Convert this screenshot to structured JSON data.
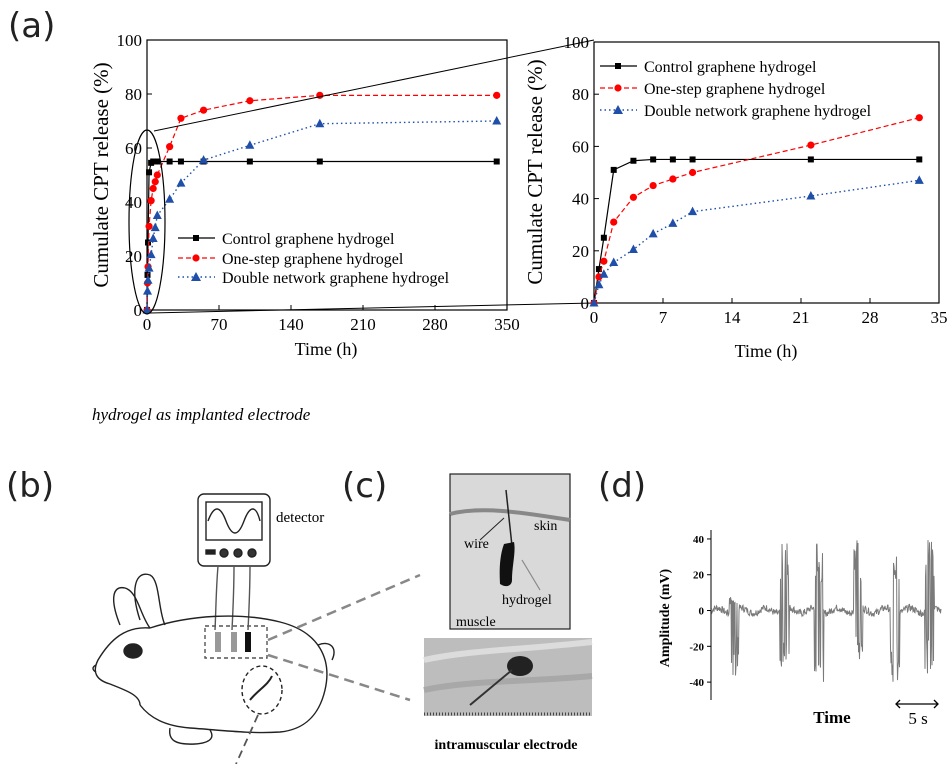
{
  "panel_labels": {
    "a": "(a)",
    "b": "(b)",
    "c": "(c)",
    "d": "(d)"
  },
  "caption_implanted": "hydrogel as implanted  electrode",
  "caption_intramuscular": "intramuscular electrode",
  "illustration_b": {
    "detector_label": "detector"
  },
  "illustration_c": {
    "wire_label": "wire",
    "skin_label": "skin",
    "hydrogel_label": "hydrogel",
    "muscle_label": "muscle"
  },
  "colors": {
    "control": "#000000",
    "one_step": "#ff0000",
    "double_network": "#1f4fa8",
    "emg": "#7a7a7a"
  },
  "chart_data": [
    {
      "type": "line",
      "ylabel": "Cumulate CPT release (%)",
      "xlabel": "Time (h)",
      "xlim": [
        0,
        350
      ],
      "ylim": [
        0,
        100
      ],
      "xticks": [
        0,
        70,
        140,
        210,
        280,
        350
      ],
      "yticks": [
        0,
        20,
        40,
        60,
        80,
        100
      ],
      "legend_position": "center",
      "series": [
        {
          "name": "Control graphene hydrogel",
          "color": "#000000",
          "dash": "solid",
          "marker": "square",
          "points": [
            [
              0,
              0
            ],
            [
              0.5,
              13
            ],
            [
              1,
              25
            ],
            [
              2,
              51
            ],
            [
              4,
              54.5
            ],
            [
              6,
              55
            ],
            [
              8,
              55
            ],
            [
              10,
              55
            ],
            [
              22,
              55
            ],
            [
              33,
              55
            ],
            [
              55,
              55
            ],
            [
              100,
              55
            ],
            [
              168,
              55
            ],
            [
              340,
              55
            ]
          ]
        },
        {
          "name": "One-step graphene hydrogel",
          "color": "#ff0000",
          "dash": "dashed",
          "marker": "circle",
          "points": [
            [
              0,
              0
            ],
            [
              0.5,
              10
            ],
            [
              1,
              16
            ],
            [
              2,
              31
            ],
            [
              4,
              40.5
            ],
            [
              6,
              45
            ],
            [
              8,
              47.5
            ],
            [
              10,
              50
            ],
            [
              22,
              60.5
            ],
            [
              33,
              71
            ],
            [
              55,
              74
            ],
            [
              100,
              77.5
            ],
            [
              168,
              79.5
            ],
            [
              340,
              79.5
            ]
          ]
        },
        {
          "name": "Double network graphene hydrogel",
          "color": "#1f4fa8",
          "dash": "dotted",
          "marker": "triangle",
          "points": [
            [
              0,
              0
            ],
            [
              0.5,
              7
            ],
            [
              1,
              11
            ],
            [
              2,
              15.5
            ],
            [
              4,
              20.5
            ],
            [
              6,
              26.5
            ],
            [
              8,
              30.5
            ],
            [
              10,
              35
            ],
            [
              22,
              41
            ],
            [
              33,
              47
            ],
            [
              55,
              55.5
            ],
            [
              100,
              61
            ],
            [
              168,
              69
            ],
            [
              340,
              70
            ]
          ]
        }
      ]
    },
    {
      "type": "line",
      "ylabel": "Cumulate CPT release (%)",
      "xlabel": "Time (h)",
      "xlim": [
        0,
        35
      ],
      "ylim": [
        0,
        100
      ],
      "xticks": [
        0,
        7,
        14,
        21,
        28,
        35
      ],
      "yticks": [
        0,
        20,
        40,
        60,
        80,
        100
      ],
      "legend_position": "top-left",
      "series": [
        {
          "name": "Control graphene hydrogel",
          "color": "#000000",
          "dash": "solid",
          "marker": "square",
          "points": [
            [
              0,
              0
            ],
            [
              0.5,
              13
            ],
            [
              1,
              25
            ],
            [
              2,
              51
            ],
            [
              4,
              54.5
            ],
            [
              6,
              55
            ],
            [
              8,
              55
            ],
            [
              10,
              55
            ],
            [
              22,
              55
            ],
            [
              33,
              55
            ]
          ]
        },
        {
          "name": "One-step graphene hydrogel",
          "color": "#ff0000",
          "dash": "dashed",
          "marker": "circle",
          "points": [
            [
              0,
              0
            ],
            [
              0.5,
              10
            ],
            [
              1,
              16
            ],
            [
              2,
              31
            ],
            [
              4,
              40.5
            ],
            [
              6,
              45
            ],
            [
              8,
              47.5
            ],
            [
              10,
              50
            ],
            [
              22,
              60.5
            ],
            [
              33,
              71
            ]
          ]
        },
        {
          "name": "Double network graphene hydrogel",
          "color": "#1f4fa8",
          "dash": "dotted",
          "marker": "triangle",
          "points": [
            [
              0,
              0
            ],
            [
              0.5,
              7
            ],
            [
              1,
              11
            ],
            [
              2,
              15.5
            ],
            [
              4,
              20.5
            ],
            [
              6,
              26.5
            ],
            [
              8,
              30.5
            ],
            [
              10,
              35
            ],
            [
              22,
              41
            ],
            [
              33,
              47
            ]
          ]
        }
      ]
    },
    {
      "type": "line",
      "ylabel": "Amplitude (mV)",
      "xlabel": "Time",
      "ylim": [
        -50,
        45
      ],
      "yticks": [
        40,
        20,
        0,
        -20,
        -40
      ],
      "scale_bar_label": "5 s",
      "series": [
        {
          "name": "",
          "color": "#7a7a7a",
          "bursts": [
            {
              "t": 8,
              "amp_min": -37,
              "amp_max": 8
            },
            {
              "t": 30,
              "amp_min": -36,
              "amp_max": 40
            },
            {
              "t": 45,
              "amp_min": -40,
              "amp_max": 40
            },
            {
              "t": 62,
              "amp_min": -36,
              "amp_max": 40
            },
            {
              "t": 78,
              "amp_min": -40,
              "amp_max": 40
            },
            {
              "t": 93,
              "amp_min": -38,
              "amp_max": 40
            }
          ]
        }
      ]
    }
  ]
}
